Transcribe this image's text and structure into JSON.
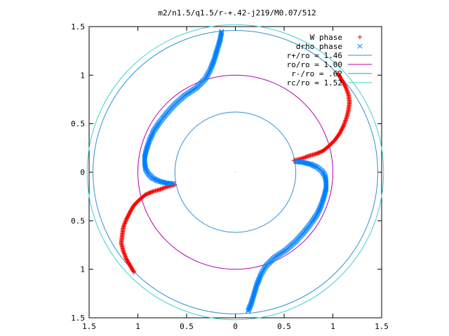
{
  "chart_data": {
    "type": "scatter",
    "title": "m2/n1.5/q1.5/r-+.42-j219/M0.07/512",
    "xlabel": "",
    "ylabel": "",
    "xlim": [
      -1.5,
      1.5
    ],
    "ylim": [
      -1.5,
      1.5
    ],
    "grid": false,
    "legend_position": "top-right",
    "x_ticks": [
      {
        "value": -1.5,
        "label": "1.5"
      },
      {
        "value": -1.0,
        "label": "1"
      },
      {
        "value": -0.5,
        "label": "0.5"
      },
      {
        "value": 0.0,
        "label": "0"
      },
      {
        "value": 0.5,
        "label": "0.5"
      },
      {
        "value": 1.0,
        "label": "1"
      },
      {
        "value": 1.5,
        "label": "1.5"
      }
    ],
    "y_ticks": [
      {
        "value": 1.5,
        "label": "1.5"
      },
      {
        "value": 1.0,
        "label": "1"
      },
      {
        "value": 0.5,
        "label": "0.5"
      },
      {
        "value": 0.0,
        "label": "0"
      },
      {
        "value": -0.5,
        "label": "0.5"
      },
      {
        "value": -1.0,
        "label": "1"
      },
      {
        "value": -1.5,
        "label": "1.5"
      }
    ],
    "series": [
      {
        "name": "W phase",
        "marker": "plus",
        "color": "#ff0000",
        "arms": [
          [
            [
              0.6,
              0.12
            ],
            [
              0.68,
              0.14
            ],
            [
              0.76,
              0.17
            ],
            [
              0.83,
              0.19
            ],
            [
              0.9,
              0.22
            ],
            [
              0.96,
              0.27
            ],
            [
              1.02,
              0.33
            ],
            [
              1.07,
              0.4
            ],
            [
              1.11,
              0.48
            ],
            [
              1.14,
              0.56
            ],
            [
              1.16,
              0.64
            ],
            [
              1.17,
              0.72
            ],
            [
              1.16,
              0.8
            ],
            [
              1.13,
              0.88
            ],
            [
              1.09,
              0.95
            ],
            [
              1.05,
              1.02
            ]
          ],
          [
            [
              -0.62,
              -0.13
            ],
            [
              -0.7,
              -0.15
            ],
            [
              -0.78,
              -0.18
            ],
            [
              -0.85,
              -0.2
            ],
            [
              -0.92,
              -0.23
            ],
            [
              -0.98,
              -0.28
            ],
            [
              -1.04,
              -0.34
            ],
            [
              -1.08,
              -0.41
            ],
            [
              -1.12,
              -0.49
            ],
            [
              -1.15,
              -0.57
            ],
            [
              -1.16,
              -0.65
            ],
            [
              -1.17,
              -0.73
            ],
            [
              -1.15,
              -0.81
            ],
            [
              -1.12,
              -0.89
            ],
            [
              -1.08,
              -0.96
            ],
            [
              -1.04,
              -1.03
            ]
          ]
        ]
      },
      {
        "name": "drho phase",
        "marker": "x",
        "color": "#0080ff",
        "arms": [
          [
            [
              0.62,
              0.11
            ],
            [
              0.7,
              0.1
            ],
            [
              0.78,
              0.08
            ],
            [
              0.84,
              0.05
            ],
            [
              0.89,
              0.01
            ],
            [
              0.92,
              -0.04
            ],
            [
              0.93,
              -0.1
            ],
            [
              0.93,
              -0.17
            ],
            [
              0.91,
              -0.25
            ],
            [
              0.88,
              -0.34
            ],
            [
              0.84,
              -0.43
            ],
            [
              0.78,
              -0.52
            ],
            [
              0.71,
              -0.61
            ],
            [
              0.62,
              -0.71
            ],
            [
              0.52,
              -0.8
            ],
            [
              0.4,
              -0.88
            ],
            [
              0.31,
              -0.97
            ],
            [
              0.26,
              -1.06
            ],
            [
              0.22,
              -1.16
            ],
            [
              0.19,
              -1.26
            ],
            [
              0.16,
              -1.36
            ],
            [
              0.13,
              -1.43
            ]
          ],
          [
            [
              -0.64,
              -0.12
            ],
            [
              -0.72,
              -0.11
            ],
            [
              -0.79,
              -0.09
            ],
            [
              -0.85,
              -0.06
            ],
            [
              -0.89,
              -0.02
            ],
            [
              -0.92,
              0.03
            ],
            [
              -0.93,
              0.09
            ],
            [
              -0.93,
              0.16
            ],
            [
              -0.91,
              0.24
            ],
            [
              -0.88,
              0.33
            ],
            [
              -0.84,
              0.42
            ],
            [
              -0.78,
              0.51
            ],
            [
              -0.71,
              0.6
            ],
            [
              -0.62,
              0.7
            ],
            [
              -0.52,
              0.79
            ],
            [
              -0.4,
              0.87
            ],
            [
              -0.31,
              0.96
            ],
            [
              -0.26,
              1.05
            ],
            [
              -0.22,
              1.15
            ],
            [
              -0.19,
              1.25
            ],
            [
              -0.16,
              1.35
            ],
            [
              -0.14,
              1.45
            ]
          ]
        ]
      },
      {
        "name": "r+/ro = 1.46",
        "type": "circle",
        "radius": 1.46,
        "color": "#3090d0"
      },
      {
        "name": "ro/ro = 1.00",
        "type": "circle",
        "radius": 1.0,
        "color": "#b000b0"
      },
      {
        "name": "r-/ro = .62",
        "type": "circle",
        "radius": 0.62,
        "color": "#3090d0"
      },
      {
        "name": "rc/ro = 1.52",
        "type": "circle",
        "radius": 1.52,
        "color": "#40d0d0"
      }
    ]
  }
}
